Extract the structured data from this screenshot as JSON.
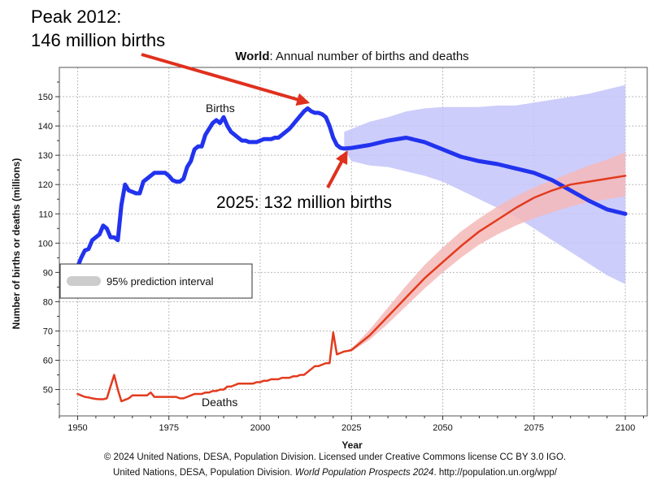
{
  "annotations": {
    "peak_line1": "Peak 2012:",
    "peak_line2": "146 million births",
    "births_2025": "2025: 132 million births"
  },
  "credits": {
    "line1": "© 2024 United Nations, DESA, Population Division. Licensed under Creative Commons license CC BY 3.0 IGO.",
    "line2_prefix": "United Nations, DESA, Population Division.",
    "line2_italic": "World Population Prospects 2024",
    "line2_suffix": ". http://population.un.org/wpp/"
  },
  "colors": {
    "births": "#2233ee",
    "births_band": "#c4c4fa",
    "deaths": "#e23b1e",
    "deaths_band": "#f5b9b9",
    "arrow": "#e0301e",
    "grid": "#bbbbbb"
  },
  "chart_data": {
    "type": "line",
    "title_bold": "World",
    "title_rest": ": Annual number of births and deaths",
    "xlabel": "Year",
    "ylabel": "Number of births or deaths (millions)",
    "xlim": [
      1945,
      2106
    ],
    "ylim": [
      41,
      160
    ],
    "xticks": [
      1950,
      1975,
      2000,
      2025,
      2050,
      2075,
      2100
    ],
    "yticks": [
      50,
      60,
      70,
      80,
      90,
      100,
      110,
      120,
      130,
      140,
      150
    ],
    "grid": true,
    "legend": {
      "label": "95% prediction interval",
      "position": "left"
    },
    "series_labels": {
      "births": "Births",
      "deaths": "Deaths"
    },
    "series": [
      {
        "name": "Births",
        "x": [
          1950,
          1951,
          1952,
          1953,
          1954,
          1955,
          1956,
          1957,
          1958,
          1959,
          1960,
          1961,
          1962,
          1963,
          1964,
          1965,
          1966,
          1967,
          1968,
          1969,
          1970,
          1971,
          1972,
          1973,
          1974,
          1975,
          1976,
          1977,
          1978,
          1979,
          1980,
          1981,
          1982,
          1983,
          1984,
          1985,
          1986,
          1987,
          1988,
          1989,
          1990,
          1991,
          1992,
          1993,
          1994,
          1995,
          1996,
          1997,
          1998,
          1999,
          2000,
          2001,
          2002,
          2003,
          2004,
          2005,
          2006,
          2007,
          2008,
          2009,
          2010,
          2011,
          2012,
          2013,
          2014,
          2015,
          2016,
          2017,
          2018,
          2019,
          2020,
          2021,
          2022,
          2023,
          2024,
          2025,
          2030,
          2035,
          2040,
          2045,
          2050,
          2055,
          2060,
          2065,
          2070,
          2075,
          2080,
          2085,
          2090,
          2095,
          2100
        ],
        "values": [
          92,
          95,
          97.5,
          98,
          101,
          102,
          103,
          106,
          105,
          102,
          102,
          101,
          113,
          120,
          118,
          117.5,
          117,
          117,
          121,
          122,
          123,
          124,
          124,
          124,
          124,
          123,
          121.5,
          121,
          121,
          122,
          126,
          128,
          132,
          133,
          133,
          137,
          139,
          141,
          142,
          141,
          143,
          140,
          138,
          137,
          136,
          135,
          135,
          134.5,
          134.5,
          134.5,
          135,
          135.5,
          135.5,
          135.5,
          136,
          136,
          137,
          138,
          139,
          140.5,
          142,
          143.5,
          145,
          146,
          145,
          144.5,
          144.5,
          144,
          143,
          140,
          136,
          133.5,
          132.5,
          132.3,
          132.4,
          132.5,
          133.5,
          135,
          136,
          134.5,
          132,
          129.5,
          128,
          127,
          125.5,
          124,
          121.5,
          118,
          114.5,
          111.5,
          110
        ]
      },
      {
        "name": "Deaths",
        "x": [
          1950,
          1951,
          1952,
          1953,
          1954,
          1955,
          1956,
          1957,
          1958,
          1959,
          1960,
          1961,
          1962,
          1963,
          1964,
          1965,
          1966,
          1967,
          1968,
          1969,
          1970,
          1971,
          1972,
          1973,
          1974,
          1975,
          1976,
          1977,
          1978,
          1979,
          1980,
          1981,
          1982,
          1983,
          1984,
          1985,
          1986,
          1987,
          1988,
          1989,
          1990,
          1991,
          1992,
          1993,
          1994,
          1995,
          1996,
          1997,
          1998,
          1999,
          2000,
          2001,
          2002,
          2003,
          2004,
          2005,
          2006,
          2007,
          2008,
          2009,
          2010,
          2011,
          2012,
          2013,
          2014,
          2015,
          2016,
          2017,
          2018,
          2019,
          2020,
          2021,
          2022,
          2023,
          2024,
          2025,
          2030,
          2035,
          2040,
          2045,
          2050,
          2055,
          2060,
          2065,
          2070,
          2075,
          2080,
          2085,
          2090,
          2095,
          2100
        ],
        "values": [
          48.5,
          48,
          47.5,
          47.3,
          47,
          46.8,
          46.7,
          46.7,
          47,
          51,
          55,
          50,
          46,
          46.5,
          47,
          48,
          48,
          48,
          48,
          48,
          49,
          47.5,
          47.5,
          47.5,
          47.5,
          47.5,
          47.5,
          47.5,
          47,
          47,
          47.5,
          48,
          48.5,
          48.5,
          48.5,
          49,
          49,
          49.5,
          49.5,
          50,
          50,
          51,
          51,
          51.5,
          52,
          52,
          52,
          52,
          52,
          52.5,
          52.5,
          53,
          53,
          53.5,
          53.5,
          53.5,
          54,
          54,
          54,
          54.5,
          54.5,
          55,
          55,
          56,
          57,
          58,
          58,
          58.5,
          59,
          59,
          69.5,
          62,
          62.5,
          63,
          63.2,
          63.5,
          68.5,
          75,
          81.5,
          88,
          93.5,
          99,
          104,
          108,
          112,
          115.5,
          118,
          120,
          121,
          122,
          123
        ]
      }
    ],
    "intervals": [
      {
        "series": "Births",
        "x": [
          2023,
          2025,
          2030,
          2035,
          2040,
          2045,
          2050,
          2055,
          2060,
          2065,
          2070,
          2075,
          2080,
          2085,
          2090,
          2095,
          2100
        ],
        "lower": [
          132,
          128,
          126.5,
          126,
          124.5,
          123,
          121,
          118,
          115,
          112,
          109,
          105,
          101,
          97,
          93,
          89,
          86
        ],
        "upper": [
          138,
          139,
          141.5,
          143,
          145,
          146,
          146.5,
          146.5,
          146.5,
          147,
          147,
          148,
          149,
          150,
          151,
          152.5,
          154
        ]
      },
      {
        "series": "Deaths",
        "x": [
          2023,
          2025,
          2030,
          2035,
          2040,
          2045,
          2050,
          2055,
          2060,
          2065,
          2070,
          2075,
          2080,
          2085,
          2090,
          2095,
          2100
        ],
        "lower": [
          63,
          63,
          67,
          72.5,
          78.5,
          84.5,
          90,
          95,
          99.5,
          103,
          106,
          108.5,
          110.5,
          112.5,
          114,
          115,
          116
        ],
        "upper": [
          63,
          64,
          70.5,
          78,
          85.5,
          92.5,
          98.5,
          104,
          108.5,
          112.5,
          116,
          119,
          121.5,
          124,
          126.5,
          128.5,
          131
        ]
      }
    ]
  }
}
